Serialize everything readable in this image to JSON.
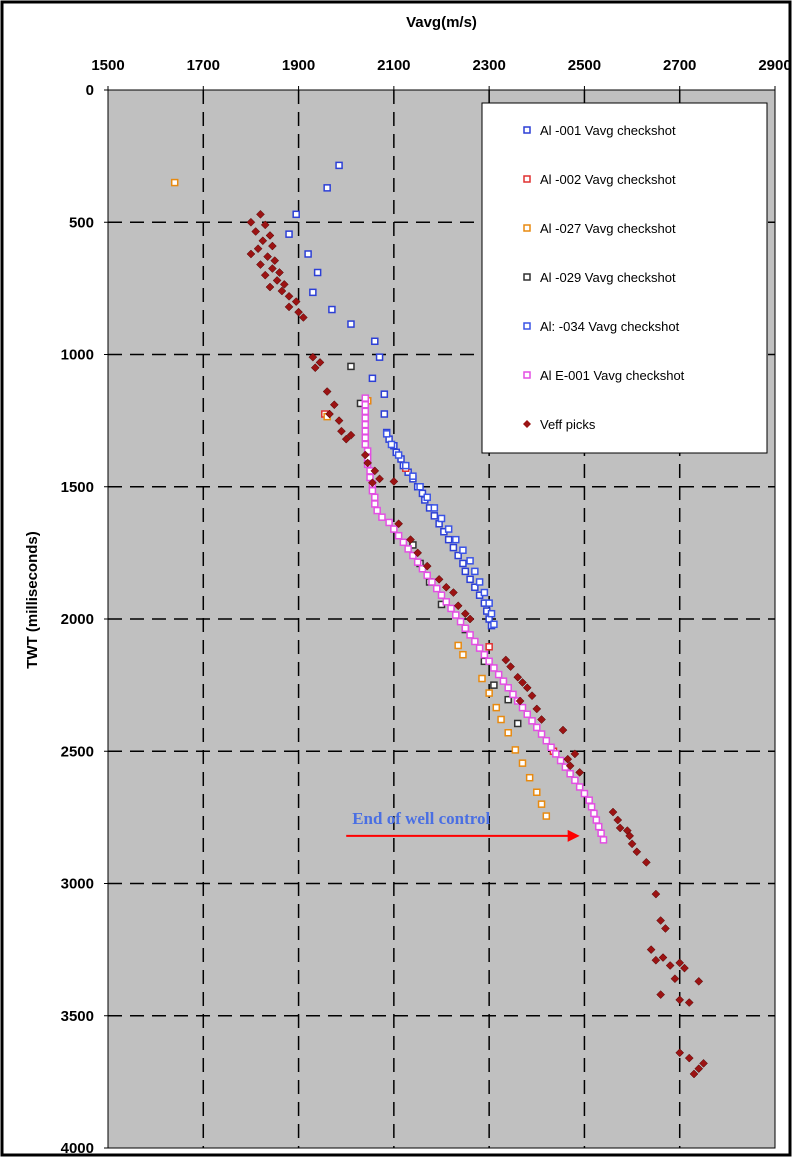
{
  "chart_data": {
    "type": "scatter",
    "xlabel": "Vavg(m/s)",
    "ylabel": "TWT (milliseconds)",
    "xlim": [
      1500,
      2900
    ],
    "ylim": [
      0,
      4000
    ],
    "y_inverted": true,
    "x_axis_position": "top",
    "grid": true,
    "plot_background": "#c0c0c0",
    "x_ticks": [
      "1500",
      "1700",
      "1900",
      "2100",
      "2300",
      "2500",
      "2700",
      "2900"
    ],
    "y_ticks": [
      "0",
      "500",
      "1000",
      "1500",
      "2000",
      "2500",
      "3000",
      "3500",
      "4000"
    ],
    "legend_position": "top-right",
    "annotation": {
      "text": "End of well control",
      "arrow_from": [
        2000,
        2820
      ],
      "arrow_to": [
        2490,
        2820
      ],
      "color": "#4a6fe3",
      "arrow_color": "#ff0000"
    },
    "series": [
      {
        "name": "Al    -001 Vavg checkshot",
        "marker": "square",
        "color": "#2c3fd6",
        "points": [
          [
            1985,
            285
          ],
          [
            1895,
            470
          ],
          [
            1960,
            370
          ],
          [
            1920,
            620
          ],
          [
            1880,
            545
          ],
          [
            1940,
            690
          ],
          [
            1930,
            765
          ],
          [
            1970,
            830
          ],
          [
            2010,
            885
          ],
          [
            2060,
            950
          ],
          [
            2070,
            1010
          ],
          [
            2055,
            1090
          ],
          [
            2080,
            1150
          ],
          [
            2080,
            1225
          ],
          [
            2085,
            1295
          ],
          [
            2090,
            1320
          ],
          [
            2100,
            1345
          ],
          [
            2105,
            1370
          ],
          [
            2115,
            1395
          ],
          [
            2120,
            1420
          ],
          [
            2130,
            1445
          ],
          [
            2140,
            1470
          ],
          [
            2150,
            1500
          ],
          [
            2160,
            1525
          ],
          [
            2165,
            1550
          ],
          [
            2175,
            1580
          ],
          [
            2185,
            1610
          ],
          [
            2195,
            1640
          ],
          [
            2205,
            1670
          ],
          [
            2215,
            1700
          ],
          [
            2225,
            1730
          ],
          [
            2235,
            1760
          ],
          [
            2245,
            1790
          ],
          [
            2250,
            1820
          ],
          [
            2260,
            1850
          ],
          [
            2270,
            1880
          ],
          [
            2280,
            1910
          ],
          [
            2290,
            1940
          ],
          [
            2295,
            1970
          ],
          [
            2300,
            2000
          ],
          [
            2305,
            2025
          ]
        ]
      },
      {
        "name": "Al    -002 Vavg checkshot",
        "marker": "square",
        "color": "#e03030",
        "points": [
          [
            1955,
            1225
          ],
          [
            2045,
            1175
          ],
          [
            2125,
            1430
          ],
          [
            2300,
            2105
          ],
          [
            2435,
            2500
          ]
        ]
      },
      {
        "name": "Al    -027 Vavg checkshot",
        "marker": "square",
        "color": "#e88a10",
        "points": [
          [
            1640,
            350
          ],
          [
            1960,
            1235
          ],
          [
            2045,
            1175
          ],
          [
            2235,
            2100
          ],
          [
            2245,
            2135
          ],
          [
            2285,
            2225
          ],
          [
            2300,
            2280
          ],
          [
            2315,
            2335
          ],
          [
            2325,
            2380
          ],
          [
            2340,
            2430
          ],
          [
            2355,
            2495
          ],
          [
            2370,
            2545
          ],
          [
            2385,
            2600
          ],
          [
            2400,
            2655
          ],
          [
            2410,
            2700
          ],
          [
            2420,
            2745
          ]
        ]
      },
      {
        "name": "Al    -029 Vavg checkshot",
        "marker": "square",
        "color": "#303030",
        "points": [
          [
            2010,
            1045
          ],
          [
            2030,
            1185
          ],
          [
            2140,
            1720
          ],
          [
            2155,
            1790
          ],
          [
            2175,
            1860
          ],
          [
            2200,
            1945
          ],
          [
            2250,
            2040
          ],
          [
            2290,
            2160
          ],
          [
            2310,
            2250
          ],
          [
            2340,
            2305
          ],
          [
            2360,
            2395
          ]
        ]
      },
      {
        "name": "Al:    -034 Vavg checkshot",
        "marker": "square",
        "color": "#3a53e6",
        "points": [
          [
            2085,
            1300
          ],
          [
            2095,
            1340
          ],
          [
            2110,
            1380
          ],
          [
            2125,
            1420
          ],
          [
            2140,
            1460
          ],
          [
            2155,
            1500
          ],
          [
            2170,
            1540
          ],
          [
            2185,
            1580
          ],
          [
            2200,
            1620
          ],
          [
            2215,
            1660
          ],
          [
            2230,
            1700
          ],
          [
            2245,
            1740
          ],
          [
            2260,
            1780
          ],
          [
            2270,
            1820
          ],
          [
            2280,
            1860
          ],
          [
            2290,
            1900
          ],
          [
            2300,
            1940
          ],
          [
            2305,
            1980
          ],
          [
            2310,
            2020
          ]
        ]
      },
      {
        "name": "Al    E-001 Vavg checkshot",
        "marker": "square",
        "color": "#e34fe3",
        "points": [
          [
            2040,
            1165
          ],
          [
            2040,
            1190
          ],
          [
            2040,
            1215
          ],
          [
            2040,
            1240
          ],
          [
            2040,
            1265
          ],
          [
            2040,
            1290
          ],
          [
            2040,
            1315
          ],
          [
            2040,
            1340
          ],
          [
            2045,
            1365
          ],
          [
            2045,
            1390
          ],
          [
            2045,
            1415
          ],
          [
            2050,
            1440
          ],
          [
            2050,
            1465
          ],
          [
            2055,
            1490
          ],
          [
            2055,
            1515
          ],
          [
            2060,
            1540
          ],
          [
            2060,
            1565
          ],
          [
            2065,
            1590
          ],
          [
            2075,
            1615
          ],
          [
            2090,
            1635
          ],
          [
            2100,
            1660
          ],
          [
            2110,
            1685
          ],
          [
            2120,
            1710
          ],
          [
            2130,
            1735
          ],
          [
            2140,
            1760
          ],
          [
            2150,
            1785
          ],
          [
            2160,
            1810
          ],
          [
            2170,
            1835
          ],
          [
            2180,
            1860
          ],
          [
            2190,
            1885
          ],
          [
            2200,
            1910
          ],
          [
            2210,
            1935
          ],
          [
            2220,
            1960
          ],
          [
            2230,
            1985
          ],
          [
            2240,
            2010
          ],
          [
            2250,
            2035
          ],
          [
            2260,
            2060
          ],
          [
            2270,
            2085
          ],
          [
            2280,
            2110
          ],
          [
            2290,
            2135
          ],
          [
            2300,
            2160
          ],
          [
            2310,
            2185
          ],
          [
            2320,
            2210
          ],
          [
            2330,
            2235
          ],
          [
            2340,
            2260
          ],
          [
            2350,
            2285
          ],
          [
            2360,
            2310
          ],
          [
            2370,
            2335
          ],
          [
            2380,
            2360
          ],
          [
            2390,
            2385
          ],
          [
            2400,
            2410
          ],
          [
            2410,
            2435
          ],
          [
            2420,
            2460
          ],
          [
            2430,
            2485
          ],
          [
            2440,
            2510
          ],
          [
            2450,
            2535
          ],
          [
            2460,
            2560
          ],
          [
            2470,
            2585
          ],
          [
            2480,
            2610
          ],
          [
            2490,
            2635
          ],
          [
            2500,
            2660
          ],
          [
            2510,
            2685
          ],
          [
            2515,
            2710
          ],
          [
            2520,
            2735
          ],
          [
            2525,
            2760
          ],
          [
            2530,
            2785
          ],
          [
            2535,
            2810
          ],
          [
            2540,
            2835
          ]
        ]
      },
      {
        "name": "Veff picks",
        "marker": "diamond",
        "color": "#9b1313",
        "points": [
          [
            1820,
            470
          ],
          [
            1800,
            500
          ],
          [
            1830,
            510
          ],
          [
            1810,
            535
          ],
          [
            1840,
            550
          ],
          [
            1825,
            570
          ],
          [
            1845,
            590
          ],
          [
            1815,
            600
          ],
          [
            1800,
            620
          ],
          [
            1835,
            630
          ],
          [
            1850,
            645
          ],
          [
            1820,
            660
          ],
          [
            1845,
            675
          ],
          [
            1860,
            690
          ],
          [
            1830,
            700
          ],
          [
            1855,
            720
          ],
          [
            1870,
            735
          ],
          [
            1840,
            745
          ],
          [
            1865,
            760
          ],
          [
            1880,
            780
          ],
          [
            1895,
            800
          ],
          [
            1880,
            820
          ],
          [
            1900,
            840
          ],
          [
            1910,
            860
          ],
          [
            1930,
            1010
          ],
          [
            1945,
            1030
          ],
          [
            1935,
            1050
          ],
          [
            1960,
            1140
          ],
          [
            1975,
            1190
          ],
          [
            1965,
            1225
          ],
          [
            1985,
            1250
          ],
          [
            1990,
            1290
          ],
          [
            2010,
            1305
          ],
          [
            2000,
            1320
          ],
          [
            2040,
            1380
          ],
          [
            2045,
            1410
          ],
          [
            2060,
            1440
          ],
          [
            2070,
            1470
          ],
          [
            2055,
            1485
          ],
          [
            2100,
            1480
          ],
          [
            2110,
            1640
          ],
          [
            2135,
            1700
          ],
          [
            2150,
            1750
          ],
          [
            2170,
            1800
          ],
          [
            2195,
            1850
          ],
          [
            2210,
            1880
          ],
          [
            2225,
            1900
          ],
          [
            2235,
            1950
          ],
          [
            2250,
            1980
          ],
          [
            2260,
            2000
          ],
          [
            2335,
            2155
          ],
          [
            2345,
            2180
          ],
          [
            2360,
            2220
          ],
          [
            2370,
            2240
          ],
          [
            2380,
            2260
          ],
          [
            2390,
            2290
          ],
          [
            2365,
            2310
          ],
          [
            2400,
            2340
          ],
          [
            2410,
            2380
          ],
          [
            2455,
            2420
          ],
          [
            2465,
            2530
          ],
          [
            2470,
            2555
          ],
          [
            2480,
            2510
          ],
          [
            2490,
            2580
          ],
          [
            2560,
            2730
          ],
          [
            2570,
            2760
          ],
          [
            2575,
            2790
          ],
          [
            2590,
            2800
          ],
          [
            2595,
            2820
          ],
          [
            2600,
            2850
          ],
          [
            2610,
            2880
          ],
          [
            2630,
            2920
          ],
          [
            2650,
            3040
          ],
          [
            2660,
            3140
          ],
          [
            2670,
            3170
          ],
          [
            2640,
            3250
          ],
          [
            2650,
            3290
          ],
          [
            2665,
            3280
          ],
          [
            2680,
            3310
          ],
          [
            2700,
            3300
          ],
          [
            2690,
            3360
          ],
          [
            2710,
            3320
          ],
          [
            2660,
            3420
          ],
          [
            2700,
            3440
          ],
          [
            2720,
            3450
          ],
          [
            2740,
            3370
          ],
          [
            2700,
            3640
          ],
          [
            2720,
            3660
          ],
          [
            2740,
            3700
          ],
          [
            2750,
            3680
          ],
          [
            2730,
            3720
          ]
        ]
      }
    ]
  }
}
